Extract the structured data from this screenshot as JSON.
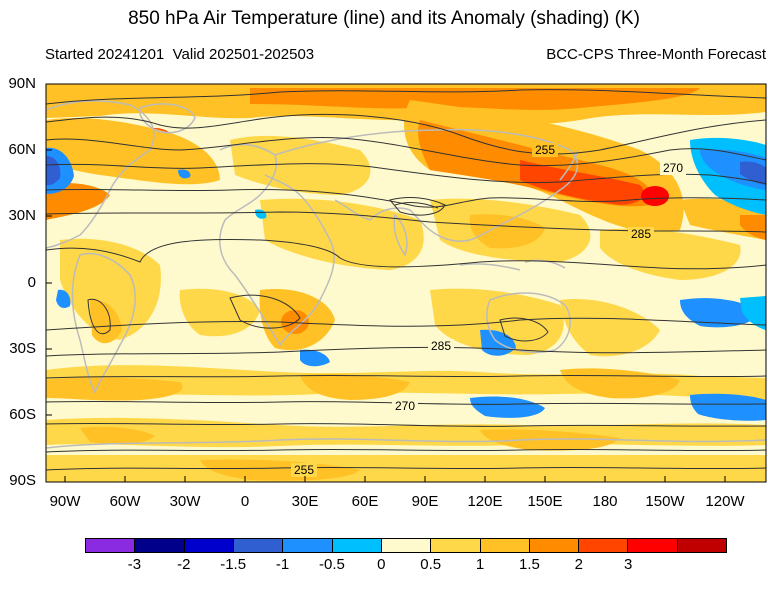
{
  "header": {
    "title": "850 hPa Air Temperature (line) and its Anomaly (shading) (K)",
    "started": "Started 20241201",
    "valid": "Valid 202501-202503",
    "source": "BCC-CPS Three-Month Forecast"
  },
  "map": {
    "lat_labels": [
      "90N",
      "60N",
      "30N",
      "0",
      "30S",
      "60S",
      "90S"
    ],
    "lon_labels": [
      "90W",
      "60W",
      "30W",
      "0",
      "30E",
      "60E",
      "90E",
      "120E",
      "150E",
      "180",
      "150W",
      "120W"
    ],
    "contour_labels": [
      "255",
      "270",
      "285",
      "285",
      "270",
      "255"
    ],
    "land_color": "#bbbbbb",
    "contour_color": "#333333"
  },
  "colorbar": {
    "colors": [
      "#8a2be2",
      "#00008b",
      "#0000cd",
      "#2f5fd0",
      "#1e90ff",
      "#00bfff",
      "#fffacd",
      "#ffd84a",
      "#ffc125",
      "#ff8c00",
      "#ff4500",
      "#ff0000",
      "#c00000"
    ],
    "labels": [
      "-3",
      "-2",
      "-1.5",
      "-1",
      "-0.5",
      "0",
      "0.5",
      "1",
      "1.5",
      "2",
      "3"
    ]
  }
}
